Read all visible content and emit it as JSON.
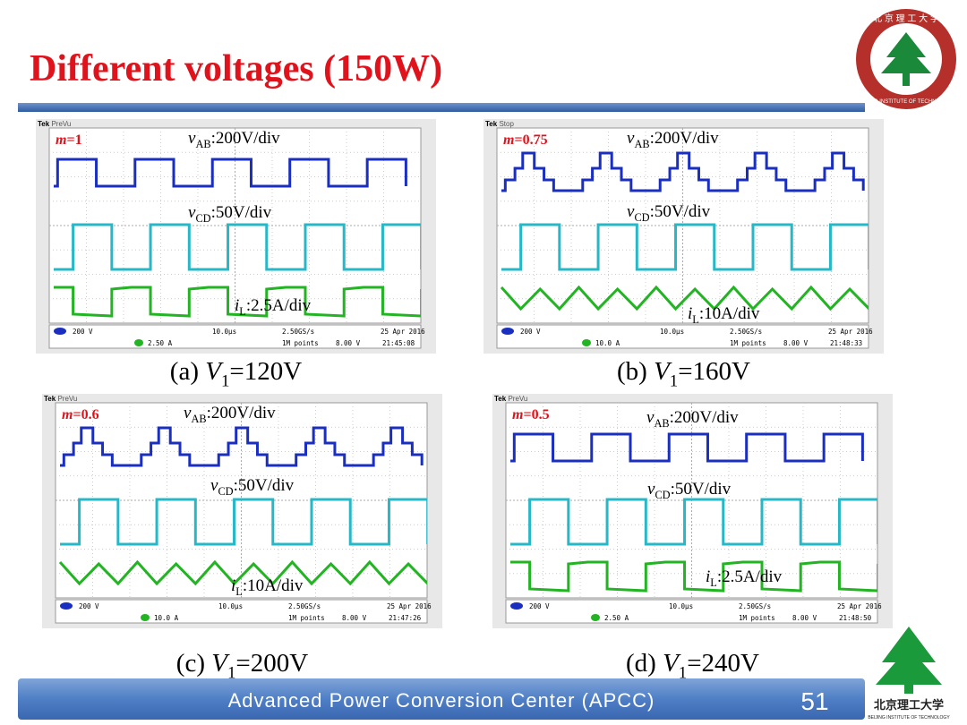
{
  "header": {
    "title": "Different voltages (150W)"
  },
  "logo": {
    "top_text": "北 京 理 工 大 学",
    "ring_text": "BEIJING INSTITUTE OF TECHNOLOGY"
  },
  "panels": [
    {
      "caption": {
        "prefix": "(a)",
        "var": "V",
        "sub": "1",
        "rest": "=120V"
      },
      "modulation": {
        "var": "m",
        "rest": "=1"
      },
      "labels": [
        {
          "var": "v",
          "sub": "AB",
          "rest": ":200V/div"
        },
        {
          "var": "v",
          "sub": "CD",
          "rest": ":50V/div"
        },
        {
          "var": "i",
          "sub": "L",
          "rest": ":2.5A/div"
        }
      ],
      "scope": {
        "brand": "Tek",
        "mode": "PreVu",
        "ch1": "200 V",
        "ch3": "2.50 A",
        "timebase": "10.0µs",
        "rate": "2.50GS/s",
        "points": "1M points",
        "trigger": "8.00 V",
        "date": "25 Apr 2016",
        "time": "21:45:08"
      }
    },
    {
      "caption": {
        "prefix": "(b)",
        "var": "V",
        "sub": "1",
        "rest": "=160V"
      },
      "modulation": {
        "var": "m",
        "rest": "=0.75"
      },
      "labels": [
        {
          "var": "v",
          "sub": "AB",
          "rest": ":200V/div"
        },
        {
          "var": "v",
          "sub": "CD",
          "rest": ":50V/div"
        },
        {
          "var": "i",
          "sub": "L",
          "rest": ":10A/div"
        }
      ],
      "scope": {
        "brand": "Tek",
        "mode": "Stop",
        "ch1": "200 V",
        "ch3": "10.0 A",
        "timebase": "10.0µs",
        "rate": "2.50GS/s",
        "points": "1M points",
        "trigger": "8.00 V",
        "date": "25 Apr 2016",
        "time": "21:48:33"
      }
    },
    {
      "caption": {
        "prefix": "(c)",
        "var": "V",
        "sub": "1",
        "rest": "=200V"
      },
      "modulation": {
        "var": "m",
        "rest": "=0.6"
      },
      "labels": [
        {
          "var": "v",
          "sub": "AB",
          "rest": ":200V/div"
        },
        {
          "var": "v",
          "sub": "CD",
          "rest": ":50V/div"
        },
        {
          "var": "i",
          "sub": "L",
          "rest": ":10A/div"
        }
      ],
      "scope": {
        "brand": "Tek",
        "mode": "PreVu",
        "ch1": "200 V",
        "ch3": "10.0 A",
        "timebase": "10.0µs",
        "rate": "2.50GS/s",
        "points": "1M points",
        "trigger": "8.00 V",
        "date": "25 Apr 2016",
        "time": "21:47:26"
      }
    },
    {
      "caption": {
        "prefix": "(d)",
        "var": "V",
        "sub": "1",
        "rest": "=240V"
      },
      "modulation": {
        "var": "m",
        "rest": "=0.5"
      },
      "labels": [
        {
          "var": "v",
          "sub": "AB",
          "rest": ":200V/div"
        },
        {
          "var": "v",
          "sub": "CD",
          "rest": ":50V/div"
        },
        {
          "var": "i",
          "sub": "L",
          "rest": ":2.5A/div"
        }
      ],
      "scope": {
        "brand": "Tek",
        "mode": "PreVu",
        "ch1": "200 V",
        "ch3": "2.50 A",
        "timebase": "10.0µs",
        "rate": "2.50GS/s",
        "points": "1M points",
        "trigger": "8.00 V",
        "date": "25 Apr 2016",
        "time": "21:48:50"
      }
    }
  ],
  "footer": {
    "text": "Advanced Power Conversion Center (APCC)",
    "page": "51",
    "logo_cn": "北京理工大学",
    "logo_en": "BEIJING INSTITUTE OF TECHNOLOGY"
  }
}
